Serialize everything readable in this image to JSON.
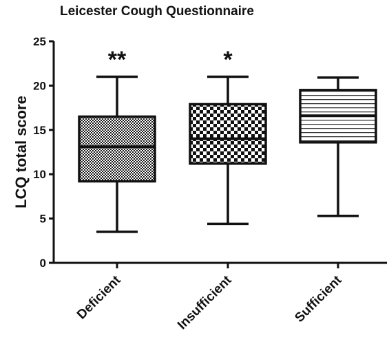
{
  "chart_data": {
    "type": "box",
    "title": "Leicester Cough Questionnaire",
    "ylabel": "LCQ total score",
    "xlabel": "",
    "ylim": [
      0,
      25
    ],
    "yticks": [
      0,
      5,
      10,
      15,
      20,
      25
    ],
    "categories": [
      "Deficient",
      "Insufficient",
      "Sufficient"
    ],
    "boxes": [
      {
        "category": "Deficient",
        "min": 3.5,
        "q1": 9.2,
        "median": 13.1,
        "q3": 16.5,
        "max": 21.0,
        "pattern": "dense-checker",
        "annotation": "**"
      },
      {
        "category": "Insufficient",
        "min": 4.4,
        "q1": 11.2,
        "median": 14.0,
        "q3": 17.9,
        "max": 21.0,
        "pattern": "checker",
        "annotation": "*"
      },
      {
        "category": "Sufficient",
        "min": 5.3,
        "q1": 13.6,
        "median": 16.6,
        "q3": 19.5,
        "max": 20.9,
        "pattern": "horizontal-lines",
        "annotation": ""
      }
    ],
    "grid": false,
    "legend": "none",
    "colors": {
      "ink": "#111111",
      "background": "#ffffff"
    }
  }
}
